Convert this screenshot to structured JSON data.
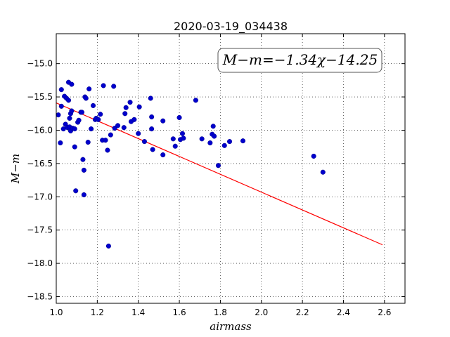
{
  "chart_data": {
    "type": "scatter",
    "title": "2020-03-19_034438",
    "xlabel": "airmass",
    "ylabel": "M−m",
    "xlim": [
      1.0,
      2.7
    ],
    "ylim": [
      -18.6,
      -14.55
    ],
    "y_inverted": true,
    "grid": true,
    "grid_style": "dotted",
    "x_ticks": [
      1.0,
      1.2,
      1.4,
      1.6,
      1.8,
      2.0,
      2.2,
      2.4,
      2.6
    ],
    "x_tick_labels": [
      "1.0",
      "1.2",
      "1.4",
      "1.6",
      "1.8",
      "2.0",
      "2.2",
      "2.4",
      "2.6"
    ],
    "y_ticks": [
      -15.0,
      -15.5,
      -16.0,
      -16.5,
      -17.0,
      -17.5,
      -18.0,
      -18.5
    ],
    "y_tick_labels": [
      "−15.0",
      "−15.5",
      "−16.0",
      "−16.5",
      "−17.0",
      "−17.5",
      "−18.0",
      "−18.5"
    ],
    "annotation": "M−m=−1.34χ−14.25",
    "marker_color": "#0000cc",
    "fit_color": "#ff0000",
    "fit": {
      "slope": -1.34,
      "intercept": -14.25,
      "x_range": [
        1.0,
        2.59
      ]
    },
    "points": [
      [
        1.01,
        -15.77
      ],
      [
        1.02,
        -16.19
      ],
      [
        1.025,
        -15.39
      ],
      [
        1.025,
        -15.64
      ],
      [
        1.035,
        -15.98
      ],
      [
        1.04,
        -15.49
      ],
      [
        1.045,
        -15.91
      ],
      [
        1.05,
        -15.52
      ],
      [
        1.055,
        -15.96
      ],
      [
        1.06,
        -15.28
      ],
      [
        1.06,
        -15.55
      ],
      [
        1.065,
        -15.82
      ],
      [
        1.065,
        -15.95
      ],
      [
        1.07,
        -16.01
      ],
      [
        1.07,
        -15.75
      ],
      [
        1.075,
        -15.71
      ],
      [
        1.075,
        -15.31
      ],
      [
        1.08,
        -15.97
      ],
      [
        1.09,
        -16.25
      ],
      [
        1.09,
        -15.98
      ],
      [
        1.095,
        -16.91
      ],
      [
        1.105,
        -15.88
      ],
      [
        1.11,
        -15.85
      ],
      [
        1.12,
        -15.73
      ],
      [
        1.125,
        -15.73
      ],
      [
        1.13,
        -16.44
      ],
      [
        1.135,
        -16.6
      ],
      [
        1.135,
        -16.97
      ],
      [
        1.14,
        -15.5
      ],
      [
        1.145,
        -15.52
      ],
      [
        1.155,
        -16.18
      ],
      [
        1.16,
        -15.38
      ],
      [
        1.17,
        -15.98
      ],
      [
        1.18,
        -15.63
      ],
      [
        1.19,
        -15.84
      ],
      [
        1.195,
        -15.82
      ],
      [
        1.205,
        -15.84
      ],
      [
        1.215,
        -15.76
      ],
      [
        1.225,
        -16.15
      ],
      [
        1.23,
        -15.33
      ],
      [
        1.24,
        -16.15
      ],
      [
        1.25,
        -16.3
      ],
      [
        1.255,
        -17.74
      ],
      [
        1.265,
        -16.07
      ],
      [
        1.28,
        -15.34
      ],
      [
        1.285,
        -15.97
      ],
      [
        1.3,
        -15.93
      ],
      [
        1.33,
        -15.96
      ],
      [
        1.335,
        -15.75
      ],
      [
        1.34,
        -15.66
      ],
      [
        1.36,
        -15.58
      ],
      [
        1.365,
        -15.87
      ],
      [
        1.38,
        -15.84
      ],
      [
        1.4,
        -16.05
      ],
      [
        1.405,
        -15.65
      ],
      [
        1.43,
        -16.17
      ],
      [
        1.46,
        -15.52
      ],
      [
        1.465,
        -15.8
      ],
      [
        1.465,
        -15.98
      ],
      [
        1.47,
        -16.29
      ],
      [
        1.52,
        -16.37
      ],
      [
        1.52,
        -15.86
      ],
      [
        1.57,
        -16.13
      ],
      [
        1.58,
        -16.24
      ],
      [
        1.6,
        -15.81
      ],
      [
        1.605,
        -16.14
      ],
      [
        1.615,
        -16.05
      ],
      [
        1.62,
        -16.12
      ],
      [
        1.68,
        -15.55
      ],
      [
        1.71,
        -16.13
      ],
      [
        1.75,
        -16.19
      ],
      [
        1.76,
        -16.06
      ],
      [
        1.765,
        -15.94
      ],
      [
        1.77,
        -16.09
      ],
      [
        1.79,
        -16.53
      ],
      [
        1.82,
        -16.23
      ],
      [
        1.845,
        -16.17
      ],
      [
        1.91,
        -16.16
      ],
      [
        2.255,
        -16.39
      ],
      [
        2.3,
        -16.63
      ]
    ]
  }
}
